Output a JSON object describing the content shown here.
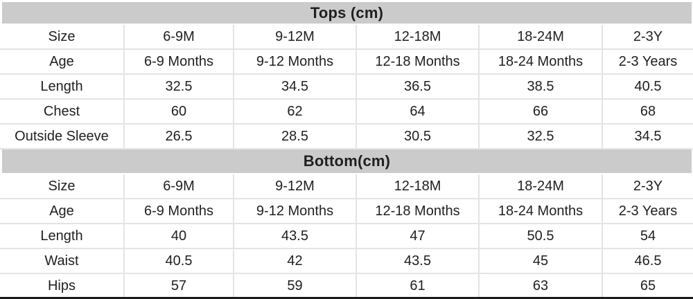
{
  "chart_data": [
    {
      "type": "table",
      "title": "Tops (cm)",
      "unit": "cm",
      "row_headers": [
        "Size",
        "Age",
        "Length",
        "Chest",
        "Outside Sleeve"
      ],
      "rows": [
        [
          "6-9M",
          "9-12M",
          "12-18M",
          "18-24M",
          "2-3Y"
        ],
        [
          "6-9 Months",
          "9-12 Months",
          "12-18 Months",
          "18-24 Months",
          "2-3 Years"
        ],
        [
          32.5,
          34.5,
          36.5,
          38.5,
          40.5
        ],
        [
          60,
          62,
          64,
          66,
          68
        ],
        [
          26.5,
          28.5,
          30.5,
          32.5,
          34.5
        ]
      ]
    },
    {
      "type": "table",
      "title": "Bottom(cm)",
      "unit": "cm",
      "row_headers": [
        "Size",
        "Age",
        "Length",
        "Waist",
        "Hips"
      ],
      "rows": [
        [
          "6-9M",
          "9-12M",
          "12-18M",
          "18-24M",
          "2-3Y"
        ],
        [
          "6-9 Months",
          "9-12 Months",
          "12-18 Months",
          "18-24 Months",
          "2-3 Years"
        ],
        [
          40,
          43.5,
          47,
          50.5,
          54
        ],
        [
          40.5,
          42,
          43.5,
          45,
          46.5
        ],
        [
          57,
          59,
          61,
          63,
          65
        ]
      ]
    }
  ],
  "colors": {
    "section_header_bg": "#cbcbcb",
    "gridline": "#e4e4e4",
    "text": "#1f1f1f",
    "table_bottom_border": "#191919",
    "row_bg": "#ffffff"
  }
}
